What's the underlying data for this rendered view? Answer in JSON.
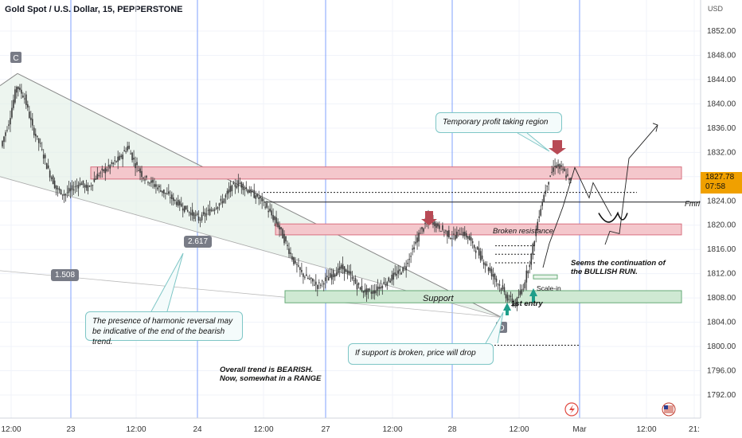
{
  "header": {
    "title": "Gold Spot / U.S. Dollar, 15, PEPPERSTONE",
    "currency": "USD"
  },
  "price_tag": {
    "price": "1827.78",
    "countdown": "07:58"
  },
  "chart_data": {
    "type": "line",
    "title": "Gold Spot / U.S. Dollar, 15, PEPPERSTONE",
    "ylabel": "USD",
    "ylim": [
      1789.0,
      1856.0
    ],
    "y_ticks": [
      1792,
      1796,
      1800,
      1804,
      1808,
      1812,
      1816,
      1820,
      1824,
      1828,
      1832,
      1836,
      1840,
      1844,
      1848,
      1852
    ],
    "x_ticks": [
      "12:00",
      "23",
      "12:00",
      "24",
      "12:00",
      "27",
      "12:00",
      "28",
      "12:00",
      "Mar",
      "12:00",
      "21:"
    ],
    "series": [
      {
        "values": [
          1833,
          1837,
          1843,
          1841,
          1836,
          1833,
          1829,
          1826,
          1825,
          1826,
          1827,
          1826,
          1828,
          1829,
          1830,
          1831,
          1833,
          1830,
          1828,
          1827,
          1826,
          1825,
          1824,
          1823,
          1822,
          1821,
          1822,
          1823,
          1824,
          1826,
          1827,
          1826,
          1825,
          1824,
          1822,
          1820,
          1817,
          1814,
          1812,
          1811,
          1810,
          1811,
          1812,
          1813,
          1812,
          1810,
          1809,
          1809,
          1810,
          1811,
          1812,
          1813,
          1816,
          1819,
          1821,
          1820,
          1819,
          1818,
          1819,
          1818,
          1816,
          1814,
          1812,
          1810,
          1808,
          1807,
          1810,
          1815,
          1822,
          1827,
          1830,
          1829,
          1827
        ]
      }
    ],
    "zones": [
      {
        "name": "resistance",
        "from": 1829.6,
        "to": 1827.6,
        "color": "#f4c7cc"
      },
      {
        "name": "broken-resistance",
        "from": 1820.2,
        "to": 1818.4,
        "color": "#f4c7cc"
      },
      {
        "name": "support",
        "from": 1809.2,
        "to": 1807.2,
        "color": "#cfe9d3"
      }
    ],
    "levels": [
      {
        "name": "fmrl",
        "value": 1823.8,
        "style": "solid"
      },
      {
        "name": "dotted-upper",
        "value": 1825.4,
        "style": "dotted"
      },
      {
        "name": "dotted-lower",
        "value": 1800.2,
        "style": "dotted"
      }
    ],
    "pattern_points": [
      {
        "label": "C",
        "value": 1845.0
      },
      {
        "label": "D",
        "value": 1804.8
      }
    ],
    "fib_ratios": [
      "2.617",
      "1.508"
    ],
    "annotations": {
      "temporary_profit": "Temporary profit taking region",
      "broken_resistance": "Broken resistance",
      "fmrl": "Fmrl",
      "bullish_run": "Seems the continuation of the BULLISH RUN.",
      "scale_in": "Scale-in",
      "first_entry": "1st entry",
      "support": "Support",
      "harmonic": "The presence of harmonic reversal may be indicative of the end of the bearish trend.",
      "support_break": "If support is broken, price will drop",
      "overall_trend": "Overall trend is BEARISH. Now, somewhat in a RANGE"
    },
    "colors": {
      "candle": "#3a3a3a",
      "resistance": "#d9707f",
      "support": "#66aa77",
      "arrow_down": "#b84a55",
      "arrow_up": "#1f9e8a",
      "vline": "#2962ff"
    }
  }
}
